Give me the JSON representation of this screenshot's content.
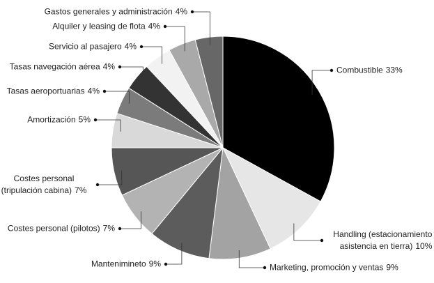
{
  "chart_data": {
    "type": "pie",
    "categories": [
      "Combustible",
      "Handling (estacionamiento y asistencia en tierra)",
      "Marketing, promoción y ventas",
      "Mantenimineto",
      "Costes personal (pilotos)",
      "Costes personal (tripulación cabina)",
      "Amortización",
      "Tasas aeroportuarias",
      "Tasas navegación aérea",
      "Servicio al pasajero",
      "Alquiler y leasing de flota",
      "Gastos generales y administración"
    ],
    "values": [
      33,
      10,
      9,
      9,
      7,
      7,
      5,
      4,
      4,
      4,
      4,
      4
    ],
    "value_labels": [
      "33%",
      "10%",
      "9%",
      "9%",
      "7%",
      "7%",
      "5%",
      "4%",
      "4%",
      "4%",
      "4%",
      "4%"
    ],
    "colors": [
      "#000000",
      "#e6e6e6",
      "#a3a3a3",
      "#5c5c5c",
      "#b3b3b3",
      "#565656",
      "#d9d9d9",
      "#7b7b7b",
      "#333333",
      "#f2f2f2",
      "#a9a9a9",
      "#676767"
    ]
  }
}
